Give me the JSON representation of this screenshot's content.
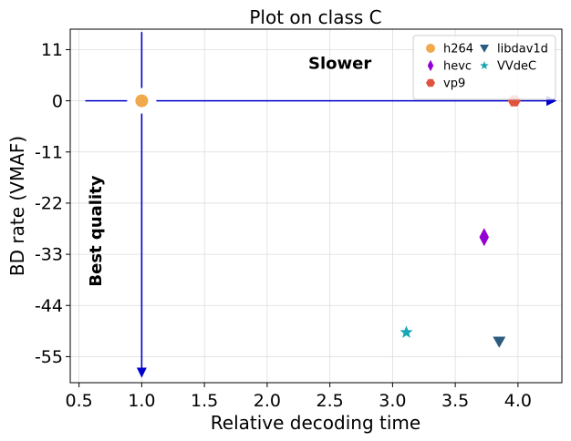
{
  "chart_data": {
    "type": "scatter",
    "title": "Plot on class C",
    "xlabel": "Relative decoding time",
    "ylabel": "BD rate (VMAF)",
    "xlim": [
      0.43,
      4.35
    ],
    "ylim": [
      -60.6,
      15.4
    ],
    "xticks": [
      0.5,
      1.0,
      1.5,
      2.0,
      2.5,
      3.0,
      3.5,
      4.0
    ],
    "xtick_labels": [
      "0.5",
      "1.0",
      "1.5",
      "2.0",
      "2.5",
      "3.0",
      "3.5",
      "4.0"
    ],
    "yticks": [
      11,
      0,
      -11,
      -22,
      -33,
      -44,
      -55
    ],
    "ytick_labels": [
      "11",
      "0",
      "-11",
      "-22",
      "-33",
      "-44",
      "-55"
    ],
    "grid": true,
    "legend_position": "top-right",
    "legend_columns": 2,
    "series": [
      {
        "name": "h264",
        "color": "#f0a94b",
        "marker": "circle",
        "x": [
          1.0
        ],
        "y": [
          0.0
        ]
      },
      {
        "name": "hevc",
        "color": "#9400d3",
        "marker": "diamond",
        "x": [
          3.73
        ],
        "y": [
          -29.3
        ]
      },
      {
        "name": "vp9",
        "color": "#e0533f",
        "marker": "hexagon",
        "x": [
          3.97
        ],
        "y": [
          0.0
        ]
      },
      {
        "name": "libdav1d",
        "color": "#2b5b7e",
        "marker": "triangle-down",
        "x": [
          3.85
        ],
        "y": [
          -51.8
        ]
      },
      {
        "name": "VVdeC",
        "color": "#17a6b5",
        "marker": "star",
        "x": [
          3.11
        ],
        "y": [
          -49.8
        ]
      }
    ],
    "annotations": [
      {
        "text": "Slower",
        "x": 2.58,
        "y": 7.9,
        "rotation": 0
      },
      {
        "text": "Best quality",
        "x": 0.64,
        "y": -28,
        "rotation": -90
      }
    ],
    "arrows": [
      {
        "name": "slower-arrow",
        "from": [
          0.55,
          0.0
        ],
        "to": [
          4.3,
          0.0
        ],
        "color": "#0000cd"
      },
      {
        "name": "best-quality-arrow",
        "from": [
          1.0,
          14.8
        ],
        "to": [
          1.0,
          -59.3
        ],
        "color": "#0000cd"
      }
    ]
  }
}
